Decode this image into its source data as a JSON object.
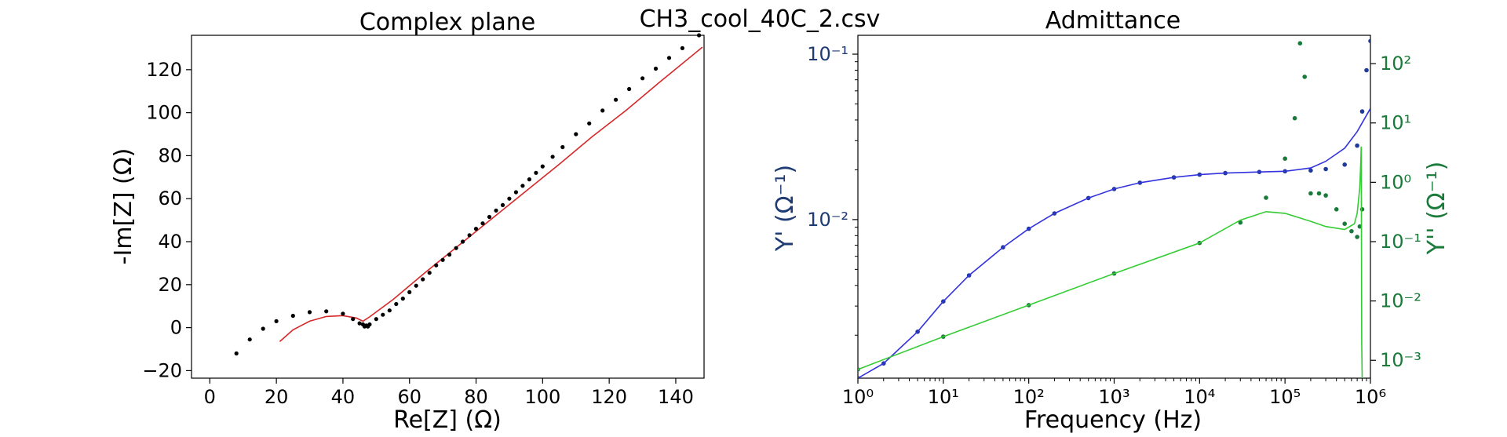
{
  "suptitle": "CH3_cool_40C_2.csv",
  "colors": {
    "data_dark": "#000000",
    "fit_red": "#d62728",
    "yreal": "#1f3a9a",
    "yreal_fit": "#3333dd",
    "yimag": "#1a7a3a",
    "yimag_fit": "#33cc33",
    "axis_left_label": "#1f3b73",
    "axis_right_label": "#1a7a3a"
  },
  "chart_data": [
    {
      "type": "scatter",
      "title": "Complex plane",
      "xlabel": "Re[Z] (Ω)",
      "ylabel": "-Im[Z] (Ω)",
      "xlim": [
        -5.5,
        148.5
      ],
      "ylim": [
        -23.5,
        136
      ],
      "xticks": [
        0,
        20,
        40,
        60,
        80,
        100,
        120,
        140
      ],
      "yticks": [
        -20,
        0,
        20,
        40,
        60,
        80,
        100,
        120
      ],
      "series": [
        {
          "kind": "points",
          "x": [
            8,
            12,
            16,
            20,
            25,
            30,
            35,
            40,
            43,
            45,
            46,
            46.5,
            47,
            47.5,
            48,
            50,
            52,
            54,
            56,
            58,
            60,
            62,
            64,
            66,
            68,
            70,
            72,
            74,
            76,
            78,
            80,
            82,
            84,
            86,
            88,
            90,
            92,
            94,
            96,
            98,
            100,
            103,
            106,
            110,
            114,
            118,
            122,
            126,
            130,
            134,
            138,
            142,
            147
          ],
          "y": [
            -12,
            -5.5,
            -0.5,
            3,
            5.5,
            7.2,
            7.6,
            6.5,
            4,
            2,
            1.5,
            0.5,
            1,
            0.5,
            1.5,
            4,
            6,
            8,
            11,
            13.5,
            16.5,
            19.5,
            22.5,
            25.5,
            29,
            31.5,
            34,
            37,
            40,
            43,
            46,
            48.5,
            51.5,
            54.5,
            57,
            60,
            63,
            66,
            69,
            72,
            75,
            79.5,
            84,
            90,
            95,
            101,
            106,
            111,
            116,
            120.5,
            125.5,
            130,
            136
          ]
        },
        {
          "kind": "line",
          "x": [
            21,
            25,
            30,
            35,
            40,
            44,
            46,
            48,
            55,
            65,
            75,
            85,
            95,
            105,
            115,
            125,
            135,
            148
          ],
          "y": [
            -6.5,
            -1,
            3,
            5.2,
            5.6,
            4.5,
            3,
            5,
            13,
            26,
            38.5,
            51,
            63.5,
            76,
            89,
            101,
            114,
            130.5
          ]
        }
      ]
    },
    {
      "type": "line",
      "title": "Admittance",
      "xlabel": "Frequency (Hz)",
      "ylabel": "Y' (Ω⁻¹)",
      "ylabel_right": "Y'' (Ω⁻¹)",
      "xscale": "log",
      "yscale": "log",
      "xlim": [
        1,
        1000000
      ],
      "ylim": [
        0.0011,
        0.13
      ],
      "ylim_right": [
        0.0005,
        300
      ],
      "xticks": [
        "10⁰",
        "10¹",
        "10²",
        "10³",
        "10⁴",
        "10⁵",
        "10⁶"
      ],
      "yticks": [
        "10⁻²",
        "10⁻¹"
      ],
      "yticks_right": [
        "10⁻³",
        "10⁻²",
        "10⁻¹",
        "10⁰",
        "10¹",
        "10²"
      ],
      "series": [
        {
          "kind": "points",
          "axis": "left",
          "x": [
            1,
            2,
            5,
            10,
            20,
            50,
            100,
            200,
            500,
            1000,
            2000,
            5000,
            10000,
            20000,
            50000,
            100000,
            200000,
            300000,
            500000,
            700000,
            800000,
            900000,
            1000000
          ],
          "y": [
            0.0011,
            0.00135,
            0.0021,
            0.0032,
            0.0046,
            0.0068,
            0.0088,
            0.0109,
            0.0135,
            0.0153,
            0.0167,
            0.018,
            0.0187,
            0.0191,
            0.0194,
            0.0196,
            0.0198,
            0.0202,
            0.0215,
            0.028,
            0.045,
            0.08,
            0.12
          ]
        },
        {
          "kind": "line",
          "axis": "left",
          "x": [
            1,
            2,
            5,
            10,
            20,
            50,
            100,
            200,
            500,
            1000,
            2000,
            5000,
            10000,
            20000,
            50000,
            100000,
            200000,
            300000,
            500000,
            700000,
            1000000
          ],
          "y": [
            0.0011,
            0.00135,
            0.0021,
            0.0032,
            0.0046,
            0.0068,
            0.0088,
            0.0109,
            0.0135,
            0.0153,
            0.0167,
            0.018,
            0.0187,
            0.0191,
            0.0194,
            0.0196,
            0.0205,
            0.0225,
            0.027,
            0.034,
            0.047
          ]
        },
        {
          "kind": "points",
          "axis": "right",
          "x": [
            1,
            10,
            100,
            1000,
            10000,
            30000,
            60000,
            100000,
            130000,
            150000,
            170000,
            200000,
            250000,
            300000,
            400000,
            500000,
            600000,
            700000,
            750000,
            800000
          ],
          "y": [
            0.0007,
            0.0025,
            0.0085,
            0.029,
            0.095,
            0.21,
            0.55,
            2.5,
            12,
            220,
            60,
            0.65,
            0.65,
            0.6,
            0.35,
            0.2,
            0.15,
            0.12,
            0.18,
            0.35
          ]
        },
        {
          "kind": "line",
          "axis": "right",
          "x": [
            1,
            10,
            100,
            1000,
            10000,
            30000,
            60000,
            100000,
            200000,
            300000,
            500000,
            650000,
            700000,
            750000,
            770000,
            780000,
            790000,
            800000
          ],
          "y": [
            0.0007,
            0.0025,
            0.0085,
            0.029,
            0.095,
            0.23,
            0.32,
            0.3,
            0.22,
            0.18,
            0.16,
            0.2,
            0.3,
            0.8,
            2.0,
            4.0,
            0.002,
            0.0005
          ]
        }
      ]
    }
  ]
}
